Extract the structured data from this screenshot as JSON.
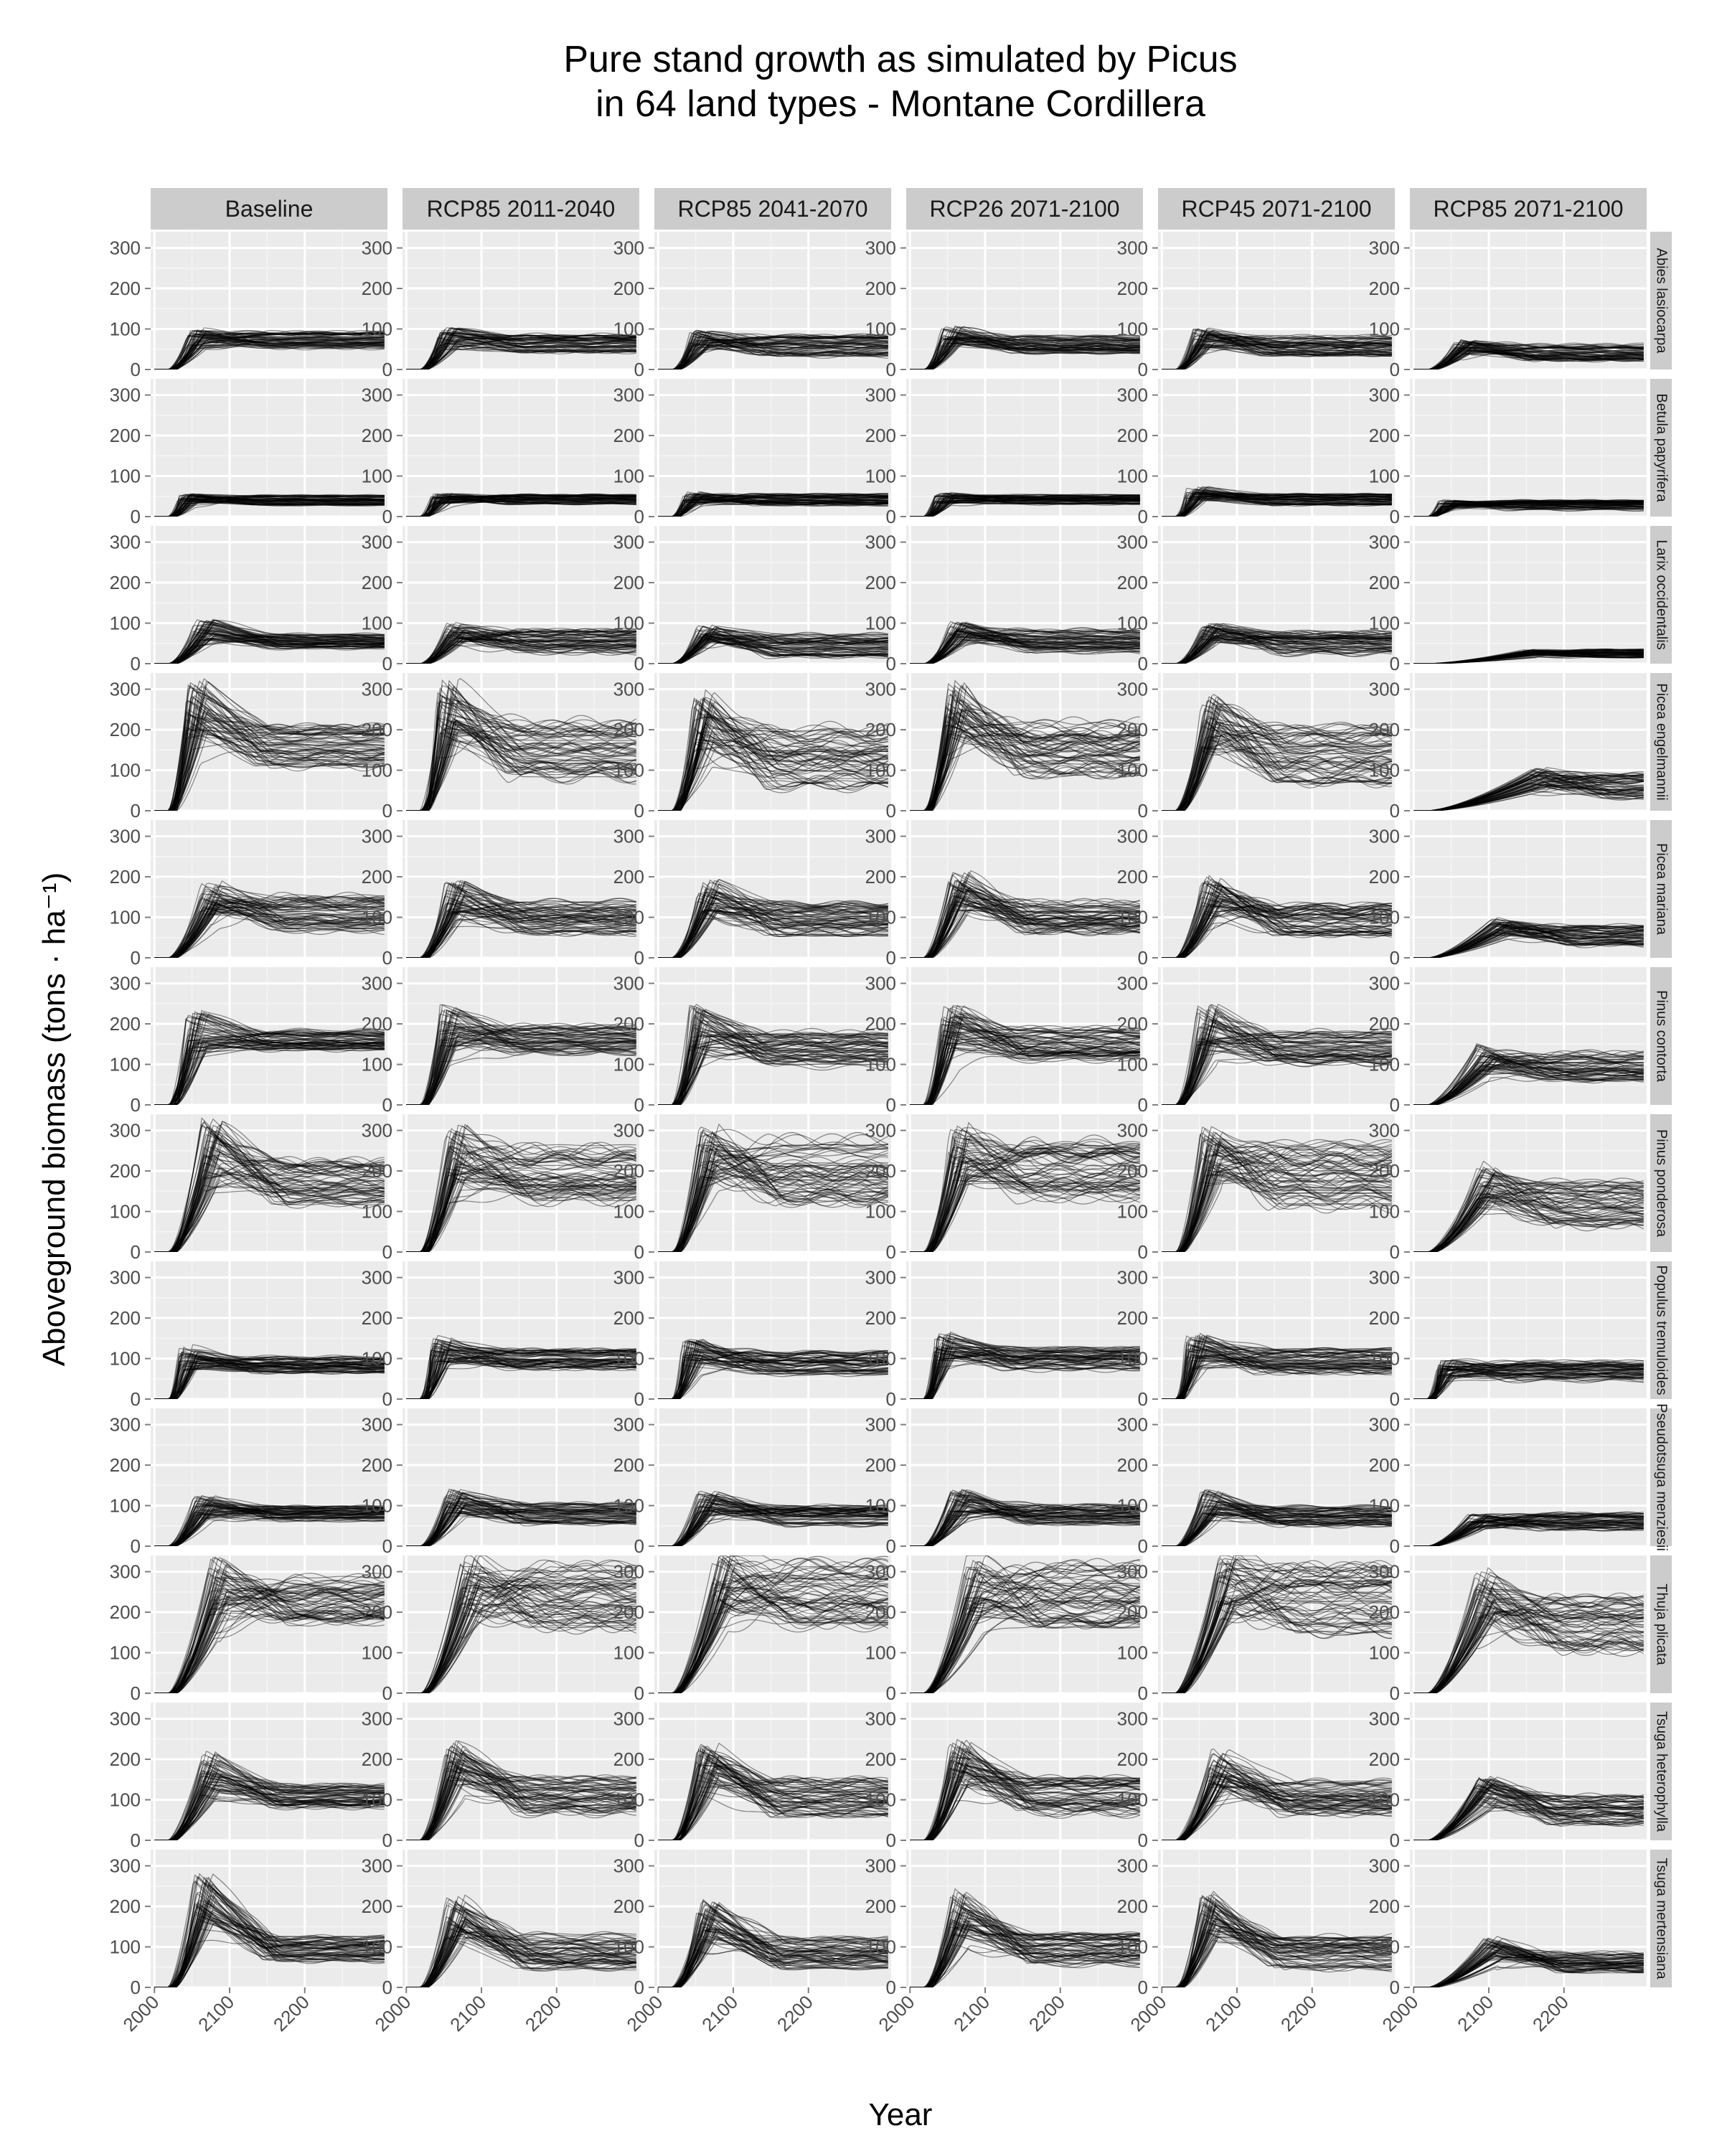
{
  "chart_data": {
    "type": "line",
    "title_line1": "Pure stand growth as simulated by Picus",
    "title_line2": "in 64 land types - Montane Cordillera",
    "xlabel": "Year",
    "ylabel": "Aboveground biomass (tons · ha⁻¹)",
    "x_ticks": [
      "2000",
      "2100",
      "2200"
    ],
    "y_ticks": [
      "0",
      "100",
      "200",
      "300"
    ],
    "xlim": [
      1995,
      2310
    ],
    "ylim": [
      0,
      340
    ],
    "grid": true,
    "facet_columns": [
      "Baseline",
      "RCP85 2011-2040",
      "RCP85 2041-2070",
      "RCP26 2071-2100",
      "RCP45 2071-2100",
      "RCP85 2071-2100"
    ],
    "facet_rows": [
      "Abies lasiocarpa",
      "Betula papyrifera",
      "Larix occidentalis",
      "Picea engelmannii",
      "Picea mariana",
      "Pinus contorta",
      "Pinus ponderosa",
      "Populus tremuloides",
      "Pseudotsuga menziesii",
      "Thuja plicata",
      "Tsuga heterophylla",
      "Tsuga mertensiana"
    ],
    "series_per_panel": 64,
    "line_color": "#000000",
    "panel_background": "#ebebeb",
    "strip_background": "#cccccc",
    "panels": [
      {
        "row": 0,
        "col": 0,
        "peak": 100,
        "peak_year": 2050,
        "plateau": 72,
        "spread": 20,
        "min_line": 20
      },
      {
        "row": 0,
        "col": 1,
        "peak": 105,
        "peak_year": 2050,
        "plateau": 65,
        "spread": 22,
        "min_line": 30
      },
      {
        "row": 0,
        "col": 2,
        "peak": 100,
        "peak_year": 2050,
        "plateau": 58,
        "spread": 25,
        "min_line": 15
      },
      {
        "row": 0,
        "col": 3,
        "peak": 108,
        "peak_year": 2050,
        "plateau": 62,
        "spread": 22,
        "min_line": 25
      },
      {
        "row": 0,
        "col": 4,
        "peak": 102,
        "peak_year": 2050,
        "plateau": 58,
        "spread": 25,
        "min_line": 15
      },
      {
        "row": 0,
        "col": 5,
        "peak": 72,
        "peak_year": 2060,
        "plateau": 42,
        "spread": 20,
        "min_line": 10
      },
      {
        "row": 1,
        "col": 0,
        "peak": 58,
        "peak_year": 2040,
        "plateau": 40,
        "spread": 12,
        "min_line": 20
      },
      {
        "row": 1,
        "col": 1,
        "peak": 58,
        "peak_year": 2040,
        "plateau": 42,
        "spread": 12,
        "min_line": 15
      },
      {
        "row": 1,
        "col": 2,
        "peak": 60,
        "peak_year": 2040,
        "plateau": 42,
        "spread": 14,
        "min_line": 10
      },
      {
        "row": 1,
        "col": 3,
        "peak": 60,
        "peak_year": 2040,
        "plateau": 42,
        "spread": 12,
        "min_line": 15
      },
      {
        "row": 1,
        "col": 4,
        "peak": 75,
        "peak_year": 2040,
        "plateau": 42,
        "spread": 14,
        "min_line": 10
      },
      {
        "row": 1,
        "col": 5,
        "peak": 40,
        "peak_year": 2040,
        "plateau": 28,
        "spread": 12,
        "min_line": 5
      },
      {
        "row": 2,
        "col": 0,
        "peak": 110,
        "peak_year": 2060,
        "plateau": 55,
        "spread": 18,
        "min_line": 20
      },
      {
        "row": 2,
        "col": 1,
        "peak": 100,
        "peak_year": 2060,
        "plateau": 55,
        "spread": 28,
        "min_line": 10
      },
      {
        "row": 2,
        "col": 2,
        "peak": 95,
        "peak_year": 2060,
        "plateau": 45,
        "spread": 28,
        "min_line": 5
      },
      {
        "row": 2,
        "col": 3,
        "peak": 105,
        "peak_year": 2060,
        "plateau": 55,
        "spread": 28,
        "min_line": 10
      },
      {
        "row": 2,
        "col": 4,
        "peak": 100,
        "peak_year": 2060,
        "plateau": 50,
        "spread": 28,
        "min_line": 5
      },
      {
        "row": 2,
        "col": 5,
        "peak": 35,
        "peak_year": 2150,
        "plateau": 25,
        "spread": 10,
        "min_line": 0
      },
      {
        "row": 3,
        "col": 0,
        "peak": 330,
        "peak_year": 2050,
        "plateau": 160,
        "spread": 50,
        "min_line": 60
      },
      {
        "row": 3,
        "col": 1,
        "peak": 330,
        "peak_year": 2050,
        "plateau": 150,
        "spread": 70,
        "min_line": 20
      },
      {
        "row": 3,
        "col": 2,
        "peak": 290,
        "peak_year": 2055,
        "plateau": 130,
        "spread": 75,
        "min_line": 10
      },
      {
        "row": 3,
        "col": 3,
        "peak": 325,
        "peak_year": 2055,
        "plateau": 150,
        "spread": 70,
        "min_line": 20
      },
      {
        "row": 3,
        "col": 4,
        "peak": 290,
        "peak_year": 2060,
        "plateau": 140,
        "spread": 70,
        "min_line": 15
      },
      {
        "row": 3,
        "col": 5,
        "peak": 105,
        "peak_year": 2160,
        "plateau": 60,
        "spread": 30,
        "min_line": 0
      },
      {
        "row": 4,
        "col": 0,
        "peak": 200,
        "peak_year": 2070,
        "plateau": 110,
        "spread": 45,
        "min_line": 10
      },
      {
        "row": 4,
        "col": 1,
        "peak": 195,
        "peak_year": 2060,
        "plateau": 100,
        "spread": 40,
        "min_line": 15
      },
      {
        "row": 4,
        "col": 2,
        "peak": 195,
        "peak_year": 2060,
        "plateau": 95,
        "spread": 40,
        "min_line": 10
      },
      {
        "row": 4,
        "col": 3,
        "peak": 215,
        "peak_year": 2060,
        "plateau": 100,
        "spread": 40,
        "min_line": 15
      },
      {
        "row": 4,
        "col": 4,
        "peak": 200,
        "peak_year": 2060,
        "plateau": 95,
        "spread": 40,
        "min_line": 10
      },
      {
        "row": 4,
        "col": 5,
        "peak": 100,
        "peak_year": 2110,
        "plateau": 55,
        "spread": 25,
        "min_line": 0
      },
      {
        "row": 5,
        "col": 0,
        "peak": 235,
        "peak_year": 2050,
        "plateau": 160,
        "spread": 25,
        "min_line": 40
      },
      {
        "row": 5,
        "col": 1,
        "peak": 250,
        "peak_year": 2050,
        "plateau": 160,
        "spread": 35,
        "min_line": 70
      },
      {
        "row": 5,
        "col": 2,
        "peak": 250,
        "peak_year": 2050,
        "plateau": 135,
        "spread": 45,
        "min_line": 30
      },
      {
        "row": 5,
        "col": 3,
        "peak": 250,
        "peak_year": 2050,
        "plateau": 150,
        "spread": 40,
        "min_line": 60
      },
      {
        "row": 5,
        "col": 4,
        "peak": 250,
        "peak_year": 2055,
        "plateau": 140,
        "spread": 40,
        "min_line": 40
      },
      {
        "row": 5,
        "col": 5,
        "peak": 150,
        "peak_year": 2090,
        "plateau": 95,
        "spread": 35,
        "min_line": 20
      },
      {
        "row": 6,
        "col": 0,
        "peak": 330,
        "peak_year": 2070,
        "plateau": 170,
        "spread": 55,
        "min_line": 60
      },
      {
        "row": 6,
        "col": 1,
        "peak": 325,
        "peak_year": 2060,
        "plateau": 200,
        "spread": 75,
        "min_line": 20
      },
      {
        "row": 6,
        "col": 2,
        "peak": 320,
        "peak_year": 2060,
        "plateau": 200,
        "spread": 80,
        "min_line": 10
      },
      {
        "row": 6,
        "col": 3,
        "peak": 310,
        "peak_year": 2060,
        "plateau": 200,
        "spread": 75,
        "min_line": 15
      },
      {
        "row": 6,
        "col": 4,
        "peak": 310,
        "peak_year": 2060,
        "plateau": 190,
        "spread": 80,
        "min_line": 10
      },
      {
        "row": 6,
        "col": 5,
        "peak": 220,
        "peak_year": 2090,
        "plateau": 120,
        "spread": 55,
        "min_line": 10
      },
      {
        "row": 7,
        "col": 0,
        "peak": 130,
        "peak_year": 2040,
        "plateau": 85,
        "spread": 20,
        "min_line": 20
      },
      {
        "row": 7,
        "col": 1,
        "peak": 155,
        "peak_year": 2040,
        "plateau": 100,
        "spread": 25,
        "min_line": 20
      },
      {
        "row": 7,
        "col": 2,
        "peak": 150,
        "peak_year": 2040,
        "plateau": 90,
        "spread": 30,
        "min_line": 10
      },
      {
        "row": 7,
        "col": 3,
        "peak": 165,
        "peak_year": 2040,
        "plateau": 100,
        "spread": 28,
        "min_line": 15
      },
      {
        "row": 7,
        "col": 4,
        "peak": 160,
        "peak_year": 2040,
        "plateau": 95,
        "spread": 30,
        "min_line": 10
      },
      {
        "row": 7,
        "col": 5,
        "peak": 100,
        "peak_year": 2040,
        "plateau": 70,
        "spread": 25,
        "min_line": 5
      },
      {
        "row": 8,
        "col": 0,
        "peak": 125,
        "peak_year": 2060,
        "plateau": 80,
        "spread": 20,
        "min_line": 30
      },
      {
        "row": 8,
        "col": 1,
        "peak": 140,
        "peak_year": 2060,
        "plateau": 80,
        "spread": 25,
        "min_line": 20
      },
      {
        "row": 8,
        "col": 2,
        "peak": 135,
        "peak_year": 2060,
        "plateau": 75,
        "spread": 25,
        "min_line": 15
      },
      {
        "row": 8,
        "col": 3,
        "peak": 140,
        "peak_year": 2060,
        "plateau": 78,
        "spread": 25,
        "min_line": 20
      },
      {
        "row": 8,
        "col": 4,
        "peak": 140,
        "peak_year": 2060,
        "plateau": 75,
        "spread": 25,
        "min_line": 15
      },
      {
        "row": 8,
        "col": 5,
        "peak": 80,
        "peak_year": 2080,
        "plateau": 60,
        "spread": 20,
        "min_line": 5
      },
      {
        "row": 9,
        "col": 0,
        "peak": 345,
        "peak_year": 2080,
        "plateau": 230,
        "spread": 60,
        "min_line": 0
      },
      {
        "row": 9,
        "col": 1,
        "peak": 345,
        "peak_year": 2080,
        "plateau": 240,
        "spread": 80,
        "min_line": 30
      },
      {
        "row": 9,
        "col": 2,
        "peak": 345,
        "peak_year": 2080,
        "plateau": 240,
        "spread": 85,
        "min_line": 20
      },
      {
        "row": 9,
        "col": 3,
        "peak": 345,
        "peak_year": 2080,
        "plateau": 240,
        "spread": 80,
        "min_line": 25
      },
      {
        "row": 9,
        "col": 4,
        "peak": 345,
        "peak_year": 2080,
        "plateau": 230,
        "spread": 85,
        "min_line": 15
      },
      {
        "row": 9,
        "col": 5,
        "peak": 300,
        "peak_year": 2090,
        "plateau": 170,
        "spread": 70,
        "min_line": 10
      },
      {
        "row": 10,
        "col": 0,
        "peak": 220,
        "peak_year": 2070,
        "plateau": 110,
        "spread": 30,
        "min_line": 20
      },
      {
        "row": 10,
        "col": 1,
        "peak": 250,
        "peak_year": 2060,
        "plateau": 110,
        "spread": 45,
        "min_line": 20
      },
      {
        "row": 10,
        "col": 2,
        "peak": 245,
        "peak_year": 2060,
        "plateau": 105,
        "spread": 45,
        "min_line": 15
      },
      {
        "row": 10,
        "col": 3,
        "peak": 250,
        "peak_year": 2060,
        "plateau": 110,
        "spread": 45,
        "min_line": 20
      },
      {
        "row": 10,
        "col": 4,
        "peak": 230,
        "peak_year": 2070,
        "plateau": 105,
        "spread": 40,
        "min_line": 15
      },
      {
        "row": 10,
        "col": 5,
        "peak": 160,
        "peak_year": 2090,
        "plateau": 75,
        "spread": 35,
        "min_line": 5
      },
      {
        "row": 11,
        "col": 0,
        "peak": 285,
        "peak_year": 2060,
        "plateau": 95,
        "spread": 30,
        "min_line": 40
      },
      {
        "row": 11,
        "col": 1,
        "peak": 225,
        "peak_year": 2060,
        "plateau": 90,
        "spread": 45,
        "min_line": 15
      },
      {
        "row": 11,
        "col": 2,
        "peak": 215,
        "peak_year": 2060,
        "plateau": 85,
        "spread": 40,
        "min_line": 10
      },
      {
        "row": 11,
        "col": 3,
        "peak": 240,
        "peak_year": 2060,
        "plateau": 95,
        "spread": 40,
        "min_line": 15
      },
      {
        "row": 11,
        "col": 4,
        "peak": 235,
        "peak_year": 2060,
        "plateau": 85,
        "spread": 40,
        "min_line": 10
      },
      {
        "row": 11,
        "col": 5,
        "peak": 125,
        "peak_year": 2100,
        "plateau": 60,
        "spread": 25,
        "min_line": 5
      }
    ]
  }
}
